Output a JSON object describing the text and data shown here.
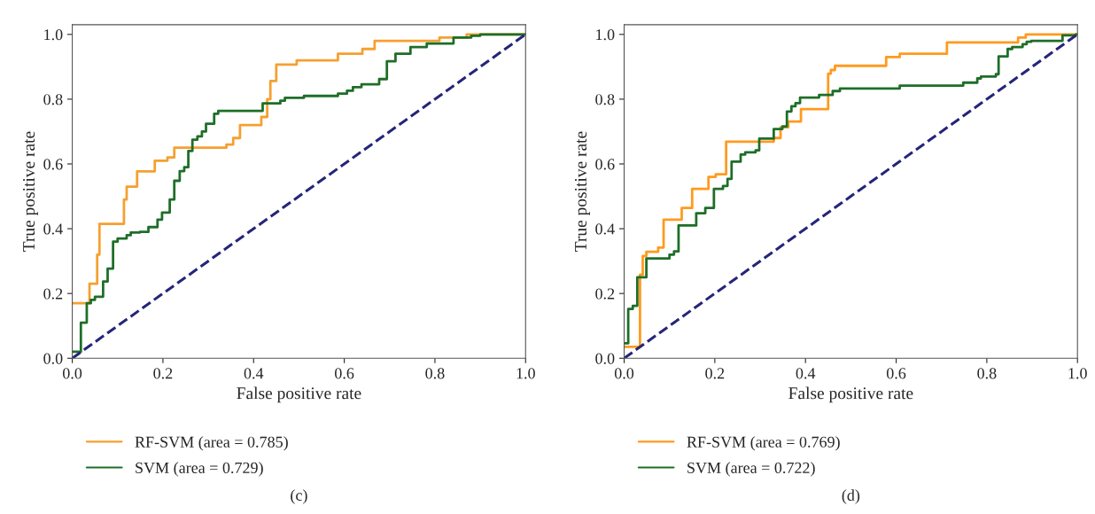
{
  "chart_data": [
    {
      "type": "step",
      "xlabel": "False positive rate",
      "ylabel": "True positive rate",
      "xlim": [
        0,
        1
      ],
      "ylim": [
        0,
        1.03
      ],
      "xticks": [
        {
          "value": 0,
          "label": "0.0"
        },
        {
          "value": 0.2,
          "label": "0.2"
        },
        {
          "value": 0.4,
          "label": "0.4"
        },
        {
          "value": 0.6,
          "label": "0.6"
        },
        {
          "value": 0.8,
          "label": "0.8"
        },
        {
          "value": 1,
          "label": "1.0"
        }
      ],
      "yticks": [
        {
          "value": 0,
          "label": "0.0"
        },
        {
          "value": 0.2,
          "label": "0.2"
        },
        {
          "value": 0.4,
          "label": "0.4"
        },
        {
          "value": 0.6,
          "label": "0.6"
        },
        {
          "value": 0.8,
          "label": "0.8"
        },
        {
          "value": 1,
          "label": "1.0"
        }
      ],
      "grid": false,
      "legend": "bottom",
      "line_style": "solid",
      "marker": "none",
      "series": [
        {
          "name": "RF-SVM (area = 0.785)",
          "color": "#f5a030",
          "x": [
            0,
            0.038,
            0.055,
            0.06,
            0.114,
            0.12,
            0.143,
            0.182,
            0.21,
            0.225,
            0.34,
            0.355,
            0.37,
            0.417,
            0.43,
            0.437,
            0.45,
            0.495,
            0.586,
            0.64,
            0.667,
            0.81,
            0.87,
            1
          ],
          "values": [
            0.17,
            0.23,
            0.32,
            0.415,
            0.49,
            0.53,
            0.577,
            0.61,
            0.62,
            0.65,
            0.66,
            0.68,
            0.72,
            0.745,
            0.8,
            0.856,
            0.907,
            0.92,
            0.94,
            0.955,
            0.98,
            0.99,
            1.0,
            1.0
          ]
        },
        {
          "name": "SVM (area = 0.729)",
          "color": "#1e6e28",
          "x": [
            0,
            0.019,
            0.032,
            0.041,
            0.05,
            0.068,
            0.078,
            0.09,
            0.1,
            0.12,
            0.129,
            0.149,
            0.168,
            0.188,
            0.198,
            0.215,
            0.225,
            0.237,
            0.247,
            0.256,
            0.265,
            0.276,
            0.286,
            0.295,
            0.313,
            0.322,
            0.42,
            0.459,
            0.469,
            0.511,
            0.586,
            0.606,
            0.619,
            0.638,
            0.677,
            0.694,
            0.713,
            0.746,
            0.782,
            0.841,
            0.88,
            0.9,
            1
          ],
          "values": [
            0.02,
            0.11,
            0.17,
            0.18,
            0.19,
            0.237,
            0.277,
            0.36,
            0.37,
            0.38,
            0.388,
            0.39,
            0.405,
            0.428,
            0.45,
            0.49,
            0.548,
            0.578,
            0.59,
            0.64,
            0.675,
            0.685,
            0.7,
            0.724,
            0.755,
            0.764,
            0.787,
            0.795,
            0.804,
            0.81,
            0.817,
            0.826,
            0.837,
            0.846,
            0.862,
            0.917,
            0.94,
            0.961,
            0.972,
            0.99,
            0.996,
            1.0,
            1.0
          ]
        },
        {
          "type": "line",
          "line_style": "dashed",
          "color": "#25257a",
          "x": [
            0,
            1
          ],
          "values": [
            0,
            1
          ]
        }
      ],
      "annotations": [
        "(c)"
      ]
    },
    {
      "type": "step",
      "xlabel": "False positive rate",
      "ylabel": "True positive rate",
      "xlim": [
        0,
        1
      ],
      "ylim": [
        0,
        1.03
      ],
      "xticks": [
        {
          "value": 0,
          "label": "0.0"
        },
        {
          "value": 0.2,
          "label": "0.2"
        },
        {
          "value": 0.4,
          "label": "0.4"
        },
        {
          "value": 0.6,
          "label": "0.6"
        },
        {
          "value": 0.8,
          "label": "0.8"
        },
        {
          "value": 1,
          "label": "1.0"
        }
      ],
      "yticks": [
        {
          "value": 0,
          "label": "0.0"
        },
        {
          "value": 0.2,
          "label": "0.2"
        },
        {
          "value": 0.4,
          "label": "0.4"
        },
        {
          "value": 0.6,
          "label": "0.6"
        },
        {
          "value": 0.8,
          "label": "0.8"
        },
        {
          "value": 1,
          "label": "1.0"
        }
      ],
      "grid": false,
      "legend": "bottom",
      "line_style": "solid",
      "marker": "none",
      "series": [
        {
          "name": "RF-SVM (area = 0.769)",
          "color": "#ff9a1e",
          "x": [
            0,
            0.035,
            0.041,
            0.049,
            0.075,
            0.087,
            0.127,
            0.15,
            0.186,
            0.202,
            0.225,
            0.33,
            0.345,
            0.362,
            0.39,
            0.45,
            0.456,
            0.465,
            0.578,
            0.608,
            0.712,
            0.869,
            0.886,
            1
          ],
          "values": [
            0.035,
            0.258,
            0.316,
            0.329,
            0.342,
            0.428,
            0.464,
            0.523,
            0.56,
            0.568,
            0.669,
            0.68,
            0.713,
            0.731,
            0.769,
            0.879,
            0.89,
            0.903,
            0.93,
            0.94,
            0.975,
            0.99,
            1.0,
            1.0
          ]
        },
        {
          "name": "SVM (area = 0.722)",
          "color": "#1e6e28",
          "x": [
            0,
            0.009,
            0.019,
            0.029,
            0.049,
            0.1,
            0.11,
            0.12,
            0.159,
            0.179,
            0.198,
            0.218,
            0.228,
            0.237,
            0.257,
            0.267,
            0.29,
            0.298,
            0.33,
            0.349,
            0.359,
            0.369,
            0.378,
            0.388,
            0.43,
            0.46,
            0.476,
            0.608,
            0.748,
            0.779,
            0.787,
            0.82,
            0.826,
            0.846,
            0.856,
            0.879,
            0.888,
            0.898,
            0.967,
            0.996,
            1
          ],
          "values": [
            0.046,
            0.152,
            0.162,
            0.25,
            0.308,
            0.32,
            0.33,
            0.41,
            0.448,
            0.464,
            0.523,
            0.532,
            0.554,
            0.607,
            0.629,
            0.636,
            0.642,
            0.678,
            0.708,
            0.716,
            0.762,
            0.778,
            0.788,
            0.805,
            0.813,
            0.825,
            0.833,
            0.842,
            0.851,
            0.864,
            0.87,
            0.877,
            0.932,
            0.955,
            0.961,
            0.97,
            0.977,
            0.98,
            0.997,
            1.0,
            1.0
          ]
        },
        {
          "type": "line",
          "line_style": "dashed",
          "color": "#25257a",
          "x": [
            0,
            1
          ],
          "values": [
            0,
            1
          ]
        }
      ],
      "annotations": [
        "(d)"
      ]
    }
  ]
}
